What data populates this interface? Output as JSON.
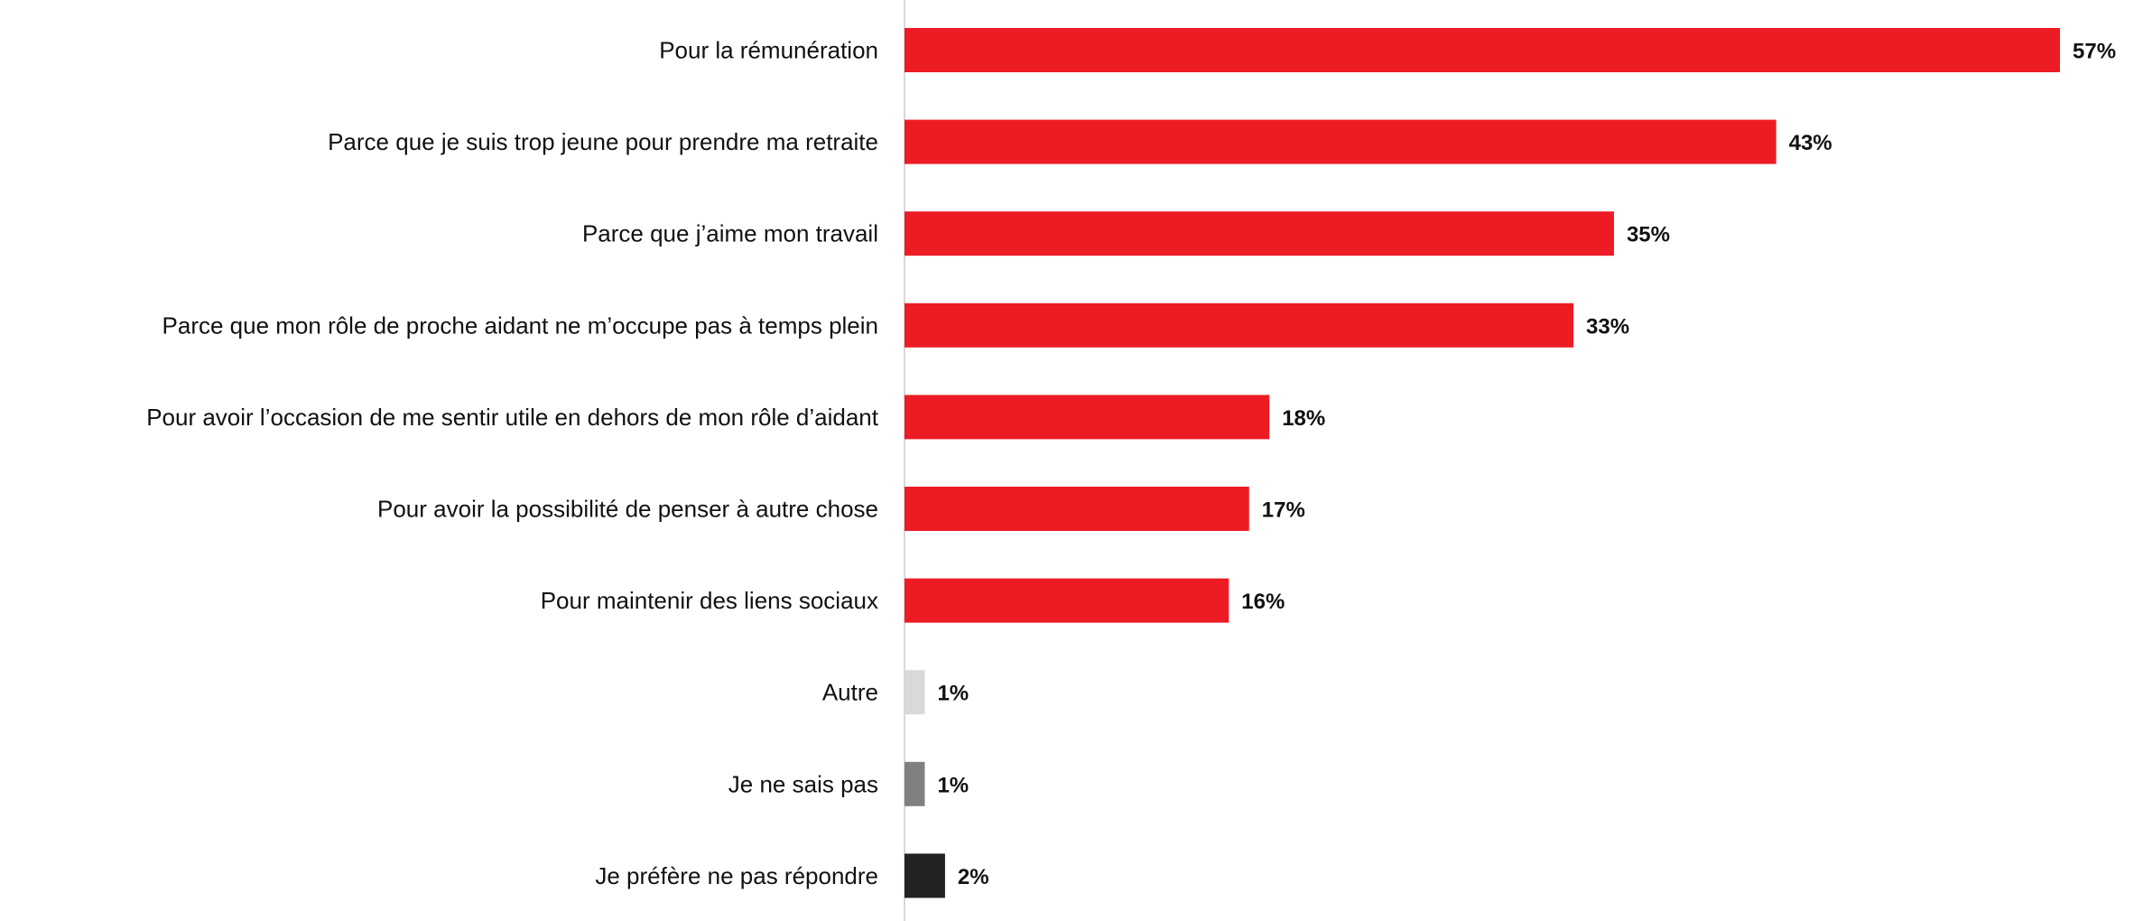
{
  "chart_data": {
    "type": "bar",
    "orientation": "horizontal",
    "title": "",
    "xlabel": "",
    "ylabel": "",
    "xlim": [
      0,
      57
    ],
    "grid": false,
    "categories": [
      "Pour la rémunération",
      "Parce que je suis trop jeune pour prendre ma retraite",
      "Parce que j’aime mon travail",
      "Parce que mon rôle de proche aidant ne m’occupe pas à temps plein",
      "Pour avoir l’occasion de me sentir utile en dehors de mon rôle d’aidant",
      "Pour avoir la possibilité de penser à autre chose",
      "Pour maintenir des liens sociaux",
      "Autre",
      "Je ne sais pas",
      "Je préfère ne pas répondre"
    ],
    "values": [
      57,
      43,
      35,
      33,
      18,
      17,
      16,
      1,
      1,
      2
    ],
    "value_labels": [
      "57%",
      "43%",
      "35%",
      "33%",
      "18%",
      "17%",
      "16%",
      "1%",
      "1%",
      "2%"
    ],
    "colors": [
      "#ED1C24",
      "#ED1C24",
      "#ED1C24",
      "#ED1C24",
      "#ED1C24",
      "#ED1C24",
      "#ED1C24",
      "#D9D9D9",
      "#808080",
      "#222222"
    ],
    "axis_color": "#D9D9D9"
  }
}
